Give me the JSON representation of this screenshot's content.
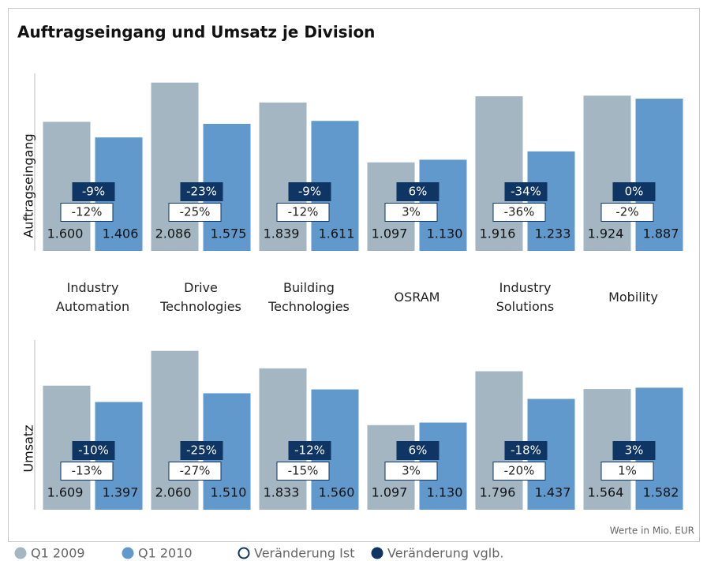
{
  "chart_data": {
    "type": "bar",
    "title": "Auftragseingang und Umsatz je Division",
    "note": "Werte in Mio. EUR",
    "categories": [
      "Industry Automation",
      "Drive Technologies",
      "Building Technologies",
      "OSRAM",
      "Industry Solutions",
      "Mobility"
    ],
    "series": [
      {
        "name": "Q1 2009",
        "color": "#a3b6c2"
      },
      {
        "name": "Q1 2010",
        "color": "#6199cc"
      }
    ],
    "changes": [
      {
        "name": "Veränderung Ist",
        "color": "#ffffff"
      },
      {
        "name": "Veränderung vglb.",
        "color": "#0e3563"
      }
    ],
    "panels": [
      {
        "y_label": "Auftragseingang",
        "ylim": [
          0,
          2200
        ],
        "values": [
          [
            1600,
            2086,
            1839,
            1097,
            1916,
            1924
          ],
          [
            1406,
            1575,
            1611,
            1130,
            1233,
            1887
          ]
        ],
        "value_labels": [
          [
            "1.600",
            "2.086",
            "1.839",
            "1.097",
            "1.916",
            "1.924"
          ],
          [
            "1.406",
            "1.575",
            "1.611",
            "1.130",
            "1.233",
            "1.887"
          ]
        ],
        "change_values": [
          [
            -12,
            -25,
            -12,
            3,
            -36,
            -2
          ],
          [
            -9,
            -23,
            -9,
            6,
            -34,
            0
          ]
        ],
        "change_labels": [
          [
            "-12%",
            "-25%",
            "-12%",
            "3%",
            "-36%",
            "-2%"
          ],
          [
            "-9%",
            "-23%",
            "-9%",
            "6%",
            "-34%",
            "0%"
          ]
        ]
      },
      {
        "y_label": "Umsatz",
        "ylim": [
          0,
          2200
        ],
        "values": [
          [
            1609,
            2060,
            1833,
            1097,
            1796,
            1564
          ],
          [
            1397,
            1510,
            1560,
            1130,
            1437,
            1582
          ]
        ],
        "value_labels": [
          [
            "1.609",
            "2.060",
            "1.833",
            "1.097",
            "1.796",
            "1.564"
          ],
          [
            "1.397",
            "1.510",
            "1.560",
            "1.130",
            "1.437",
            "1.582"
          ]
        ],
        "change_values": [
          [
            -13,
            -27,
            -15,
            3,
            -20,
            1
          ],
          [
            -10,
            -25,
            -12,
            6,
            -18,
            3
          ]
        ],
        "change_labels": [
          [
            "-13%",
            "-27%",
            "-15%",
            "3%",
            "-20%",
            "1%"
          ],
          [
            "-10%",
            "-25%",
            "-12%",
            "6%",
            "-18%",
            "3%"
          ]
        ]
      }
    ]
  }
}
